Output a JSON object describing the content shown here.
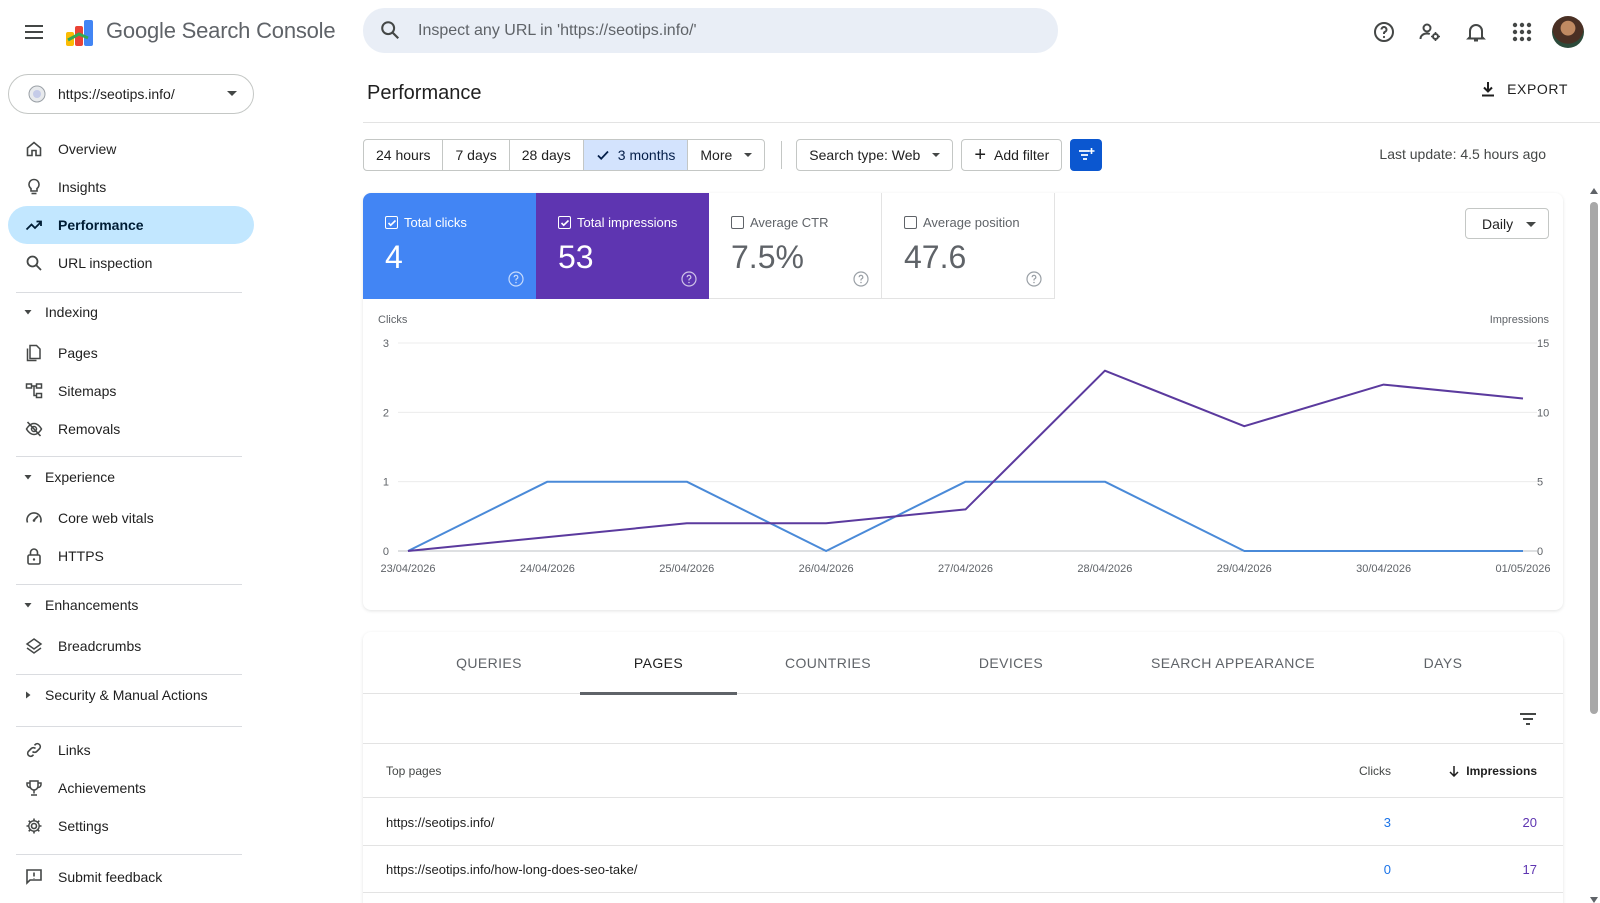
{
  "app": {
    "name_part1": "Google",
    "name_part2": "Search Console"
  },
  "search": {
    "placeholder": "Inspect any URL in 'https://seotips.info/'"
  },
  "property": {
    "url": "https://seotips.info/"
  },
  "sidebar": {
    "items": [
      {
        "label": "Overview",
        "icon": "home-icon"
      },
      {
        "label": "Insights",
        "icon": "lightbulb-icon"
      },
      {
        "label": "Performance",
        "icon": "trending-up-icon",
        "active": true
      },
      {
        "label": "URL inspection",
        "icon": "search-icon"
      }
    ],
    "sections": [
      {
        "label": "Indexing",
        "items": [
          {
            "label": "Pages",
            "icon": "pages-icon"
          },
          {
            "label": "Sitemaps",
            "icon": "sitemap-icon"
          },
          {
            "label": "Removals",
            "icon": "eye-off-icon"
          }
        ]
      },
      {
        "label": "Experience",
        "items": [
          {
            "label": "Core web vitals",
            "icon": "speed-icon"
          },
          {
            "label": "HTTPS",
            "icon": "lock-icon"
          }
        ]
      },
      {
        "label": "Enhancements",
        "items": [
          {
            "label": "Breadcrumbs",
            "icon": "layers-icon"
          }
        ]
      },
      {
        "label": "Security & Manual Actions",
        "items": []
      }
    ],
    "bottom": [
      {
        "label": "Links",
        "icon": "link-icon"
      },
      {
        "label": "Achievements",
        "icon": "trophy-icon"
      },
      {
        "label": "Settings",
        "icon": "gear-icon"
      },
      {
        "label": "Submit feedback",
        "icon": "feedback-icon"
      }
    ]
  },
  "main": {
    "title": "Performance",
    "export_label": "EXPORT",
    "date_ranges": [
      "24 hours",
      "7 days",
      "28 days",
      "3 months",
      "More"
    ],
    "selected_range": "3 months",
    "search_type": "Search type: Web",
    "add_filter": "Add filter",
    "last_update": "Last update: 4.5 hours ago"
  },
  "metrics": {
    "clicks": {
      "label": "Total clicks",
      "value": "4",
      "checked": true,
      "color": "#4285f4"
    },
    "impressions": {
      "label": "Total impressions",
      "value": "53",
      "checked": true,
      "color": "#5e35b1"
    },
    "ctr": {
      "label": "Average CTR",
      "value": "7.5%",
      "checked": false
    },
    "position": {
      "label": "Average position",
      "value": "47.6",
      "checked": false
    }
  },
  "granularity": "Daily",
  "chart_data": {
    "type": "line",
    "categories": [
      "23/04/2026",
      "24/04/2026",
      "25/04/2026",
      "26/04/2026",
      "27/04/2026",
      "28/04/2026",
      "29/04/2026",
      "30/04/2026",
      "01/05/2026"
    ],
    "ylabel_left": "Clicks",
    "ylabel_right": "Impressions",
    "ylim_left": [
      0,
      3
    ],
    "ylim_right": [
      0,
      15
    ],
    "yticks_left": [
      0,
      1,
      2,
      3
    ],
    "yticks_right": [
      0,
      5,
      10,
      15
    ],
    "series": [
      {
        "name": "Clicks",
        "axis": "left",
        "color": "#4a8ad8",
        "values": [
          0,
          1,
          1,
          0,
          1,
          1,
          0,
          0,
          0
        ]
      },
      {
        "name": "Impressions",
        "axis": "right",
        "color": "#5b3a9e",
        "values": [
          0,
          1,
          2,
          2,
          3,
          13,
          9,
          12,
          11
        ]
      }
    ],
    "grid": true
  },
  "table": {
    "tabs": [
      "QUERIES",
      "PAGES",
      "COUNTRIES",
      "DEVICES",
      "SEARCH APPEARANCE",
      "DAYS"
    ],
    "active_tab": "PAGES",
    "headers": {
      "name": "Top pages",
      "clicks": "Clicks",
      "impressions": "Impressions"
    },
    "rows": [
      {
        "page": "https://seotips.info/",
        "clicks": "3",
        "impressions": "20"
      },
      {
        "page": "https://seotips.info/how-long-does-seo-take/",
        "clicks": "0",
        "impressions": "17"
      }
    ]
  }
}
